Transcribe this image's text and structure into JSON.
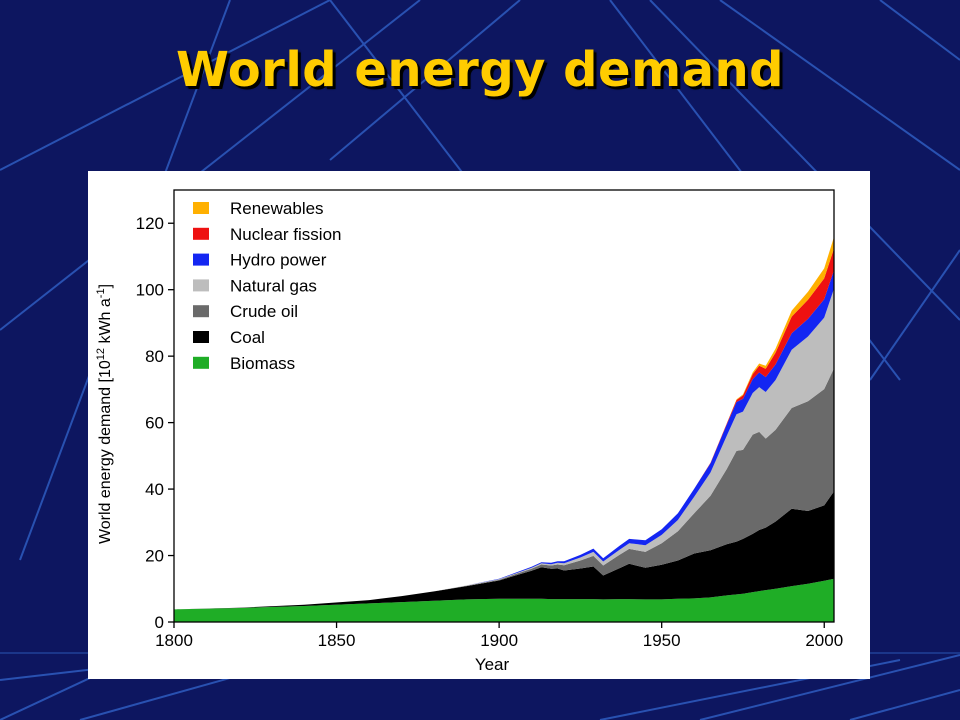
{
  "slide": {
    "title": "World energy demand"
  },
  "colors": {
    "background": "#0d1660",
    "title": "#ffcc00",
    "renewables": "#ffb000",
    "nuclear": "#ee1111",
    "hydro": "#1426f2",
    "natural_gas": "#bdbdbd",
    "crude_oil": "#6a6a6a",
    "coal": "#000000",
    "biomass": "#1fad26"
  },
  "chart_data": {
    "type": "area",
    "stacked": true,
    "title": "",
    "xlabel": "Year",
    "ylabel": "World energy demand [10¹² kWh a⁻¹]",
    "ylabel_parts": {
      "main": "World energy demand [10",
      "exp1": "12",
      "mid": " kWh a",
      "exp2": "-1",
      "end": "]"
    },
    "xlim": [
      1800,
      2003
    ],
    "ylim": [
      0,
      130
    ],
    "xticks": [
      1800,
      1850,
      1900,
      1950,
      2000
    ],
    "yticks": [
      0,
      20,
      40,
      60,
      80,
      100,
      120
    ],
    "grid": false,
    "legend_position": "top-left",
    "x": [
      1800,
      1820,
      1840,
      1860,
      1870,
      1880,
      1890,
      1900,
      1905,
      1910,
      1913,
      1916,
      1918,
      1920,
      1925,
      1929,
      1932,
      1937,
      1940,
      1945,
      1950,
      1955,
      1960,
      1965,
      1970,
      1973,
      1975,
      1978,
      1980,
      1982,
      1985,
      1990,
      1995,
      2000,
      2003
    ],
    "series": [
      {
        "name": "Biomass",
        "color_key": "biomass",
        "values": [
          3.8,
          4.2,
          4.8,
          5.6,
          6.0,
          6.4,
          6.8,
          7.0,
          7.0,
          7.0,
          7.0,
          6.9,
          6.9,
          6.9,
          6.9,
          6.9,
          6.8,
          6.9,
          6.9,
          6.8,
          6.8,
          7.0,
          7.1,
          7.4,
          8.0,
          8.3,
          8.5,
          9.0,
          9.3,
          9.6,
          10.0,
          10.8,
          11.5,
          12.4,
          13.0
        ]
      },
      {
        "name": "Coal",
        "color_key": "coal",
        "values": [
          0.0,
          0.1,
          0.4,
          1.0,
          1.8,
          2.8,
          4.0,
          5.5,
          7.0,
          8.4,
          9.5,
          9.1,
          9.2,
          8.6,
          9.2,
          9.8,
          7.2,
          9.3,
          10.6,
          9.5,
          10.4,
          11.5,
          13.5,
          14.2,
          15.4,
          15.9,
          16.5,
          17.5,
          18.4,
          18.8,
          20.2,
          23.3,
          21.9,
          22.7,
          26.3
        ]
      },
      {
        "name": "Crude oil",
        "color_key": "crude_oil",
        "values": [
          0,
          0,
          0,
          0,
          0,
          0,
          0.1,
          0.2,
          0.4,
          0.6,
          0.8,
          1.0,
          1.2,
          1.6,
          2.4,
          3.2,
          3.0,
          4.0,
          4.5,
          4.8,
          6.5,
          8.8,
          12.1,
          16.4,
          22.6,
          27.3,
          26.8,
          29.9,
          29.5,
          26.8,
          27.6,
          30.3,
          33.0,
          35.0,
          37.0
        ]
      },
      {
        "name": "Natural gas",
        "color_key": "natural_gas",
        "values": [
          0,
          0,
          0,
          0,
          0,
          0,
          0.1,
          0.2,
          0.2,
          0.3,
          0.4,
          0.4,
          0.5,
          0.6,
          0.9,
          1.2,
          1.2,
          1.5,
          1.7,
          2.0,
          2.5,
          3.4,
          5.0,
          7.0,
          10.0,
          11.0,
          11.5,
          12.5,
          13.5,
          14.0,
          15.0,
          17.5,
          19.5,
          21.5,
          24.0
        ]
      },
      {
        "name": "Hydro power",
        "color_key": "hydro",
        "values": [
          0,
          0,
          0,
          0,
          0,
          0,
          0,
          0.1,
          0.2,
          0.3,
          0.3,
          0.4,
          0.5,
          0.6,
          0.8,
          1.0,
          1.0,
          1.2,
          1.3,
          1.5,
          1.7,
          2.0,
          2.4,
          2.8,
          3.4,
          3.7,
          3.9,
          4.2,
          4.4,
          4.5,
          4.7,
          5.0,
          5.3,
          5.5,
          5.6
        ]
      },
      {
        "name": "Nuclear fission",
        "color_key": "nuclear",
        "values": [
          0,
          0,
          0,
          0,
          0,
          0,
          0,
          0,
          0,
          0,
          0,
          0,
          0,
          0,
          0,
          0,
          0,
          0,
          0,
          0,
          0,
          0,
          0,
          0.1,
          0.3,
          0.6,
          1.0,
          1.5,
          2.0,
          2.5,
          3.5,
          5.0,
          5.8,
          6.3,
          6.5
        ]
      },
      {
        "name": "Renewables",
        "color_key": "renewables",
        "values": [
          0,
          0,
          0,
          0,
          0,
          0,
          0,
          0,
          0,
          0,
          0,
          0,
          0,
          0,
          0,
          0,
          0,
          0,
          0,
          0,
          0,
          0,
          0,
          0,
          0,
          0.2,
          0.3,
          0.5,
          0.7,
          0.9,
          1.2,
          1.8,
          2.4,
          3.0,
          3.5
        ]
      }
    ]
  }
}
